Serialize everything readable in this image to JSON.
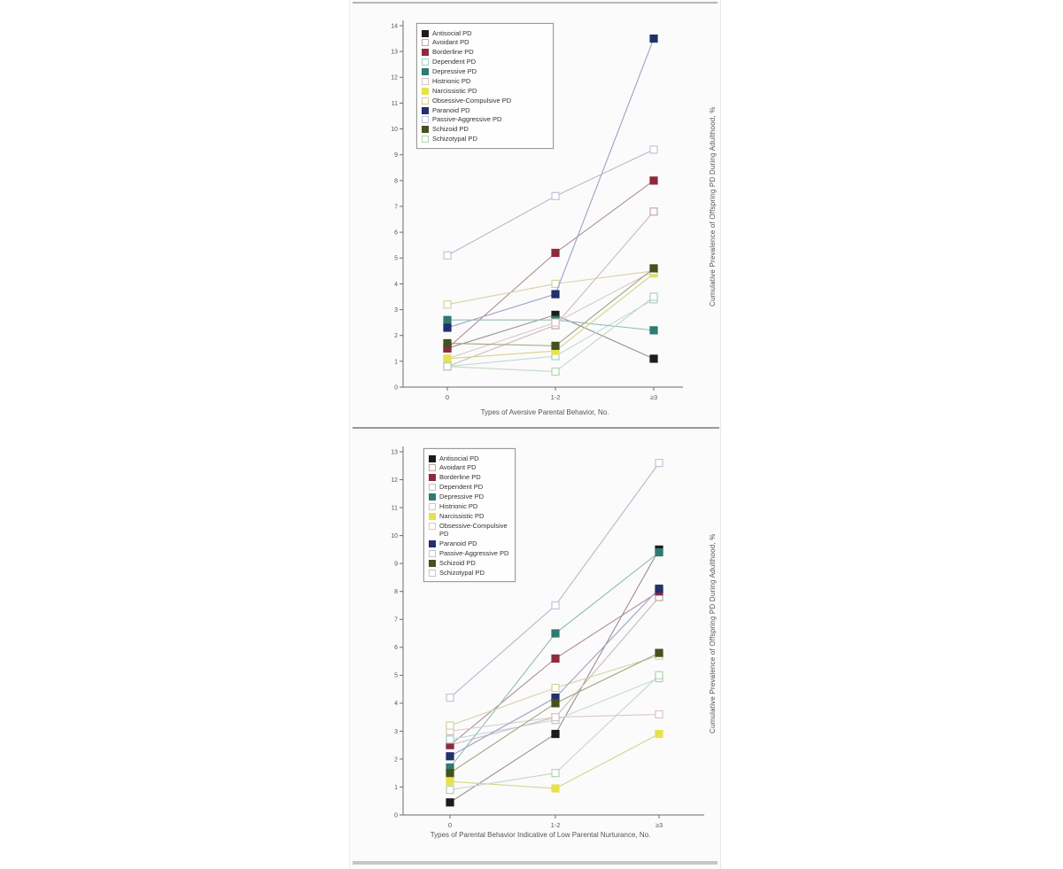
{
  "figure": {
    "panel_a": {
      "ylabel": "Cumulative Prevalence of Offspring PD During Adulthood, %",
      "xlabel": "Types of Aversive Parental Behavior, No."
    },
    "panel_b": {
      "ylabel": "Cumulative Prevalence of Offspring PD During Adulthood, %",
      "xlabel": "Types of Parental Behavior Indicative of Low Parental Nurturance, No."
    }
  },
  "chart_data": [
    {
      "type": "line",
      "title": "",
      "categories": [
        "0",
        "1-2",
        "≥3"
      ],
      "xtick_labels": [
        "0",
        "1-2",
        "≥3"
      ],
      "xlabel": "Types of Aversive Parental Behavior, No.",
      "ylabel": "Cumulative Prevalence of Offspring PD During Adulthood, %",
      "ylim": [
        0,
        14
      ],
      "ytick_step": 1,
      "ytick_labels": [
        "0",
        "1",
        "2",
        "3",
        "4",
        "5",
        "6",
        "7",
        "8",
        "9",
        "10",
        "11",
        "12",
        "13",
        "14"
      ],
      "grid": false,
      "legend_position": "top-left-inside",
      "marker_shape": "square",
      "series": [
        {
          "name": "Antisocial PD",
          "values": [
            1.5,
            2.8,
            1.1
          ],
          "marker": "filled",
          "color": "#1c1c1c",
          "line_color": "#9a8f8a"
        },
        {
          "name": "Avoidant PD",
          "values": [
            0.8,
            2.4,
            6.8
          ],
          "marker": "open",
          "color": "#c3a7a7",
          "line_color": "#cdb9b9"
        },
        {
          "name": "Borderline PD",
          "values": [
            1.5,
            5.2,
            8.0
          ],
          "marker": "filled",
          "color": "#8e2a3c",
          "line_color": "#b18e96"
        },
        {
          "name": "Dependent PD",
          "values": [
            0.8,
            1.2,
            3.4
          ],
          "marker": "open",
          "color": "#a6cecc",
          "line_color": "#bedad8"
        },
        {
          "name": "Depressive PD",
          "values": [
            2.6,
            2.6,
            2.2
          ],
          "marker": "filled",
          "color": "#2f7a72",
          "line_color": "#93bcb7"
        },
        {
          "name": "Histrionic PD",
          "values": [
            1.1,
            2.5,
            4.5
          ],
          "marker": "open",
          "color": "#dcc2c2",
          "line_color": "#d9c8c8"
        },
        {
          "name": "Narcissistic PD",
          "values": [
            1.1,
            1.4,
            4.4
          ],
          "marker": "filled",
          "color": "#e6e24e",
          "line_color": "#d5d38c"
        },
        {
          "name": "Obsessive-Compulsive PD",
          "values": [
            3.2,
            4.0,
            4.5
          ],
          "marker": "open",
          "color": "#d7d298",
          "line_color": "#d6d2a6"
        },
        {
          "name": "Paranoid PD",
          "values": [
            2.3,
            3.6,
            13.5
          ],
          "marker": "filled",
          "color": "#22306c",
          "line_color": "#9aa3c3"
        },
        {
          "name": "Passive-Aggressive PD",
          "values": [
            5.1,
            7.4,
            9.2
          ],
          "marker": "open",
          "color": "#c4c4da",
          "line_color": "#b8b8cd"
        },
        {
          "name": "Schizoid PD",
          "values": [
            1.7,
            1.6,
            4.6
          ],
          "marker": "filled",
          "color": "#45511f",
          "line_color": "#9ca67f"
        },
        {
          "name": "Schizotypal PD",
          "values": [
            0.8,
            0.6,
            3.5
          ],
          "marker": "open",
          "color": "#b4d1b4",
          "line_color": "#c3d9c3"
        }
      ]
    },
    {
      "type": "line",
      "title": "",
      "categories": [
        "0",
        "1-2",
        "≥3"
      ],
      "xtick_labels": [
        "0",
        "1-2",
        "≥3"
      ],
      "xlabel": "Types of Parental Behavior Indicative of Low Parental Nurturance, No.",
      "ylabel": "Cumulative Prevalence of Offspring PD During Adulthood, %",
      "ylim": [
        0,
        13
      ],
      "ytick_step": 1,
      "ytick_labels": [
        "0",
        "1",
        "2",
        "3",
        "4",
        "5",
        "6",
        "7",
        "8",
        "9",
        "10",
        "11",
        "12",
        "13"
      ],
      "grid": false,
      "legend_position": "top-left-inside",
      "marker_shape": "square",
      "series": [
        {
          "name": "Antisocial PD",
          "values": [
            0.45,
            2.9,
            9.5
          ],
          "marker": "filled",
          "color": "#1c1c1c",
          "line_color": "#9a8f8a"
        },
        {
          "name": "Avoidant PD",
          "values": [
            2.5,
            3.5,
            7.8
          ],
          "marker": "open",
          "color": "#c3a7a7",
          "line_color": "#cdb9b9"
        },
        {
          "name": "Borderline PD",
          "values": [
            2.5,
            5.6,
            8.0
          ],
          "marker": "filled",
          "color": "#8e2a3c",
          "line_color": "#b18e96"
        },
        {
          "name": "Dependent PD",
          "values": [
            2.7,
            3.4,
            4.9
          ],
          "marker": "open",
          "color": "#a6cecc",
          "line_color": "#bedad8"
        },
        {
          "name": "Depressive PD",
          "values": [
            1.7,
            6.5,
            9.4
          ],
          "marker": "filled",
          "color": "#2f7a72",
          "line_color": "#93bcb7"
        },
        {
          "name": "Histrionic PD",
          "values": [
            3.0,
            3.5,
            3.6
          ],
          "marker": "open",
          "color": "#dcc2c2",
          "line_color": "#d9c8c8"
        },
        {
          "name": "Narcissistic PD",
          "values": [
            1.2,
            0.95,
            2.9
          ],
          "marker": "filled",
          "color": "#e6e24e",
          "line_color": "#d5d38c"
        },
        {
          "name": "Obsessive-Compulsive PD",
          "values": [
            3.2,
            4.55,
            5.7
          ],
          "marker": "open",
          "color": "#d7d298",
          "line_color": "#d6d2a6"
        },
        {
          "name": "Paranoid PD",
          "values": [
            2.1,
            4.2,
            8.1
          ],
          "marker": "filled",
          "color": "#22306c",
          "line_color": "#9aa3c3"
        },
        {
          "name": "Passive-Aggressive PD",
          "values": [
            4.2,
            7.5,
            12.6
          ],
          "marker": "open",
          "color": "#c4c4da",
          "line_color": "#b8b8cd"
        },
        {
          "name": "Schizoid PD",
          "values": [
            1.5,
            4.0,
            5.8
          ],
          "marker": "filled",
          "color": "#45511f",
          "line_color": "#9ca67f"
        },
        {
          "name": "Schizotypal PD",
          "values": [
            0.9,
            1.5,
            5.0
          ],
          "marker": "open",
          "color": "#b4d1b4",
          "line_color": "#c3d9c3"
        }
      ]
    }
  ]
}
